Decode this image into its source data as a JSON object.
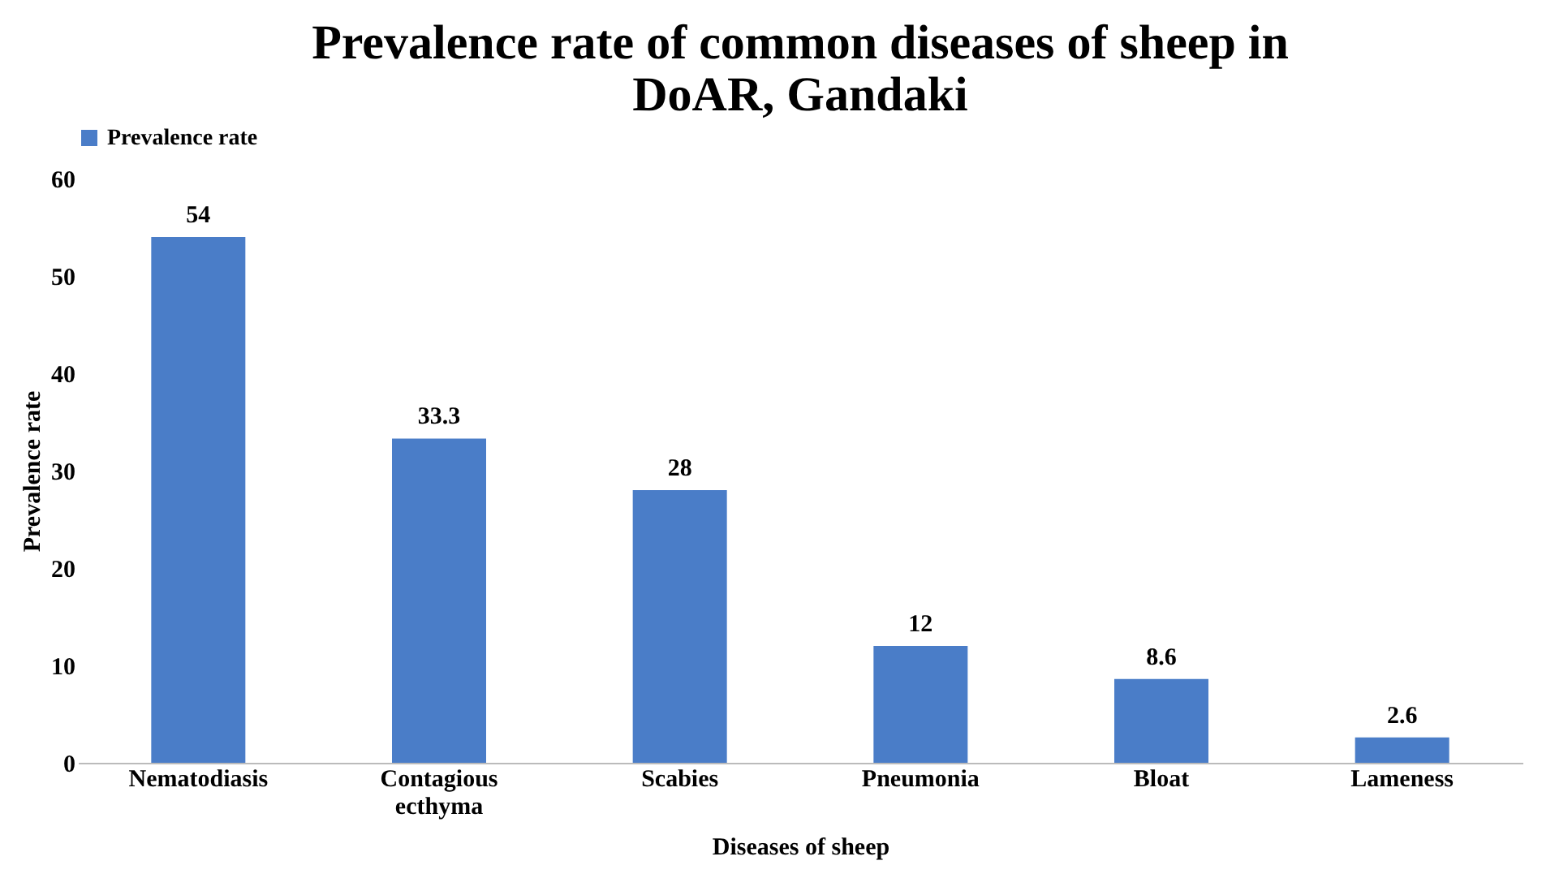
{
  "chart_data": {
    "type": "bar",
    "title": "Prevalence rate of common diseases of sheep in DoAR, Gandaki",
    "xlabel": "Diseases of sheep",
    "ylabel": "Prevalence rate",
    "categories": [
      "Nematodiasis",
      "Contagious ecthyma",
      "Scabies",
      "Pneumonia",
      "Bloat",
      "Lameness"
    ],
    "series": [
      {
        "name": "Prevalence rate",
        "color": "#4a7dc8",
        "values": [
          54,
          33.3,
          28,
          12,
          8.6,
          2.6
        ]
      }
    ],
    "ylim": [
      0,
      60
    ],
    "yticks": [
      0,
      10,
      20,
      30,
      40,
      50,
      60
    ],
    "data_labels": true,
    "legend": "top",
    "grid": false
  }
}
